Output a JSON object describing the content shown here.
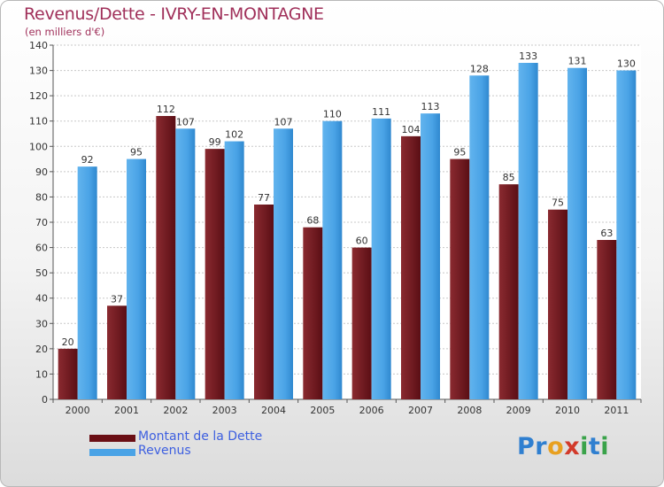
{
  "chart_data": {
    "type": "bar",
    "title": "Revenus/Dette - IVRY-EN-MONTAGNE",
    "subtitle": "(en milliers d'€)",
    "categories": [
      "2000",
      "2001",
      "2002",
      "2003",
      "2004",
      "2005",
      "2006",
      "2007",
      "2008",
      "2009",
      "2010",
      "2011"
    ],
    "series": [
      {
        "name": "Montant de la Dette",
        "color": "#7a1a22",
        "values": [
          20,
          37,
          112,
          99,
          77,
          68,
          60,
          104,
          95,
          85,
          75,
          63
        ]
      },
      {
        "name": "Revenus",
        "color": "#4aa3e6",
        "values": [
          92,
          95,
          107,
          102,
          107,
          110,
          111,
          113,
          128,
          133,
          131,
          130
        ]
      }
    ],
    "ylim": [
      0,
      140
    ],
    "yticks": [
      0,
      10,
      20,
      30,
      40,
      50,
      60,
      70,
      80,
      90,
      100,
      110,
      120,
      130,
      140
    ],
    "grid": true,
    "legend_position": "bottom-left"
  },
  "logo": {
    "letters": [
      "P",
      "r",
      "o",
      "x",
      "i",
      "t",
      "i"
    ],
    "colors": [
      "#2f7fd0",
      "#2f7fd0",
      "#e8a020",
      "#d23a2a",
      "#3aa34a",
      "#2f7fd0",
      "#3aa34a"
    ]
  }
}
